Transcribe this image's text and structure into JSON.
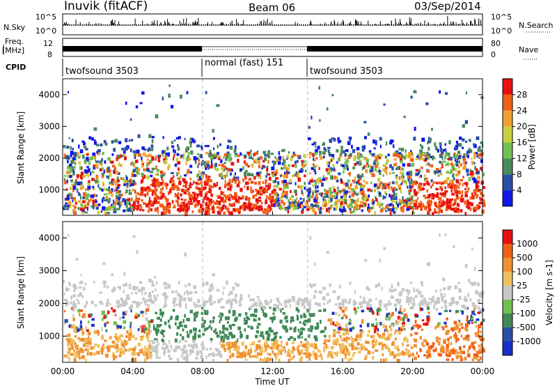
{
  "header": {
    "station": "Inuvik (fitACF)",
    "beam": "Beam 06",
    "date": "03/Sep/2014"
  },
  "top_panels": {
    "nsky": {
      "label": "N.Sky",
      "ticks": [
        "10^5",
        "10^0"
      ],
      "right_label": "N.Search",
      "right_ticks": [
        "10^5",
        "10^0"
      ]
    },
    "freq": {
      "label_line1": "Freq.",
      "label_line2": "[MHz]",
      "ticks": [
        "12",
        "8"
      ],
      "right_label": "Nave",
      "right_ticks": [
        "80",
        "0"
      ]
    },
    "cpid": {
      "label": "CPID",
      "segments": [
        "twofsound 3503",
        "normal (fast) 151",
        "twofsound 3503"
      ]
    }
  },
  "xaxis": {
    "title": "Time UT",
    "ticks": [
      "00:00",
      "04:00",
      "08:00",
      "12:00",
      "16:00",
      "20:00",
      "00:00"
    ]
  },
  "colors": {
    "power": [
      "#1018e8",
      "#2a4fa8",
      "#4a8a5a",
      "#70c050",
      "#c8d040",
      "#f0a030",
      "#f06018",
      "#e81010"
    ],
    "velocity": [
      "#e81010",
      "#f06018",
      "#f09030",
      "#f0c060",
      "#c8c8c8",
      "#70c050",
      "#408a58",
      "#2a4fa8",
      "#1a30c8"
    ]
  },
  "chart_data": [
    {
      "type": "heatmap",
      "title": "Power",
      "ylabel": "Slant Range [km]",
      "ylim": [
        200,
        4500
      ],
      "yticks": [
        "1000",
        "2000",
        "3000",
        "4000"
      ],
      "xlim_hours": [
        0,
        24
      ],
      "colorbar": {
        "label": "Power [dB]",
        "ticks": [
          "4",
          "8",
          "12",
          "16",
          "20",
          "24",
          "28"
        ],
        "range": [
          0,
          32
        ]
      }
    },
    {
      "type": "heatmap",
      "title": "Velocity",
      "ylabel": "Slant Range [km]",
      "ylim": [
        200,
        4500
      ],
      "yticks": [
        "1000",
        "2000",
        "3000",
        "4000"
      ],
      "xlim_hours": [
        0,
        24
      ],
      "colorbar": {
        "label": "Velocity [m s-1]",
        "ticks": [
          "1000",
          "500",
          "100",
          "25",
          "-25",
          "-100",
          "-500",
          "-1000"
        ]
      }
    }
  ]
}
